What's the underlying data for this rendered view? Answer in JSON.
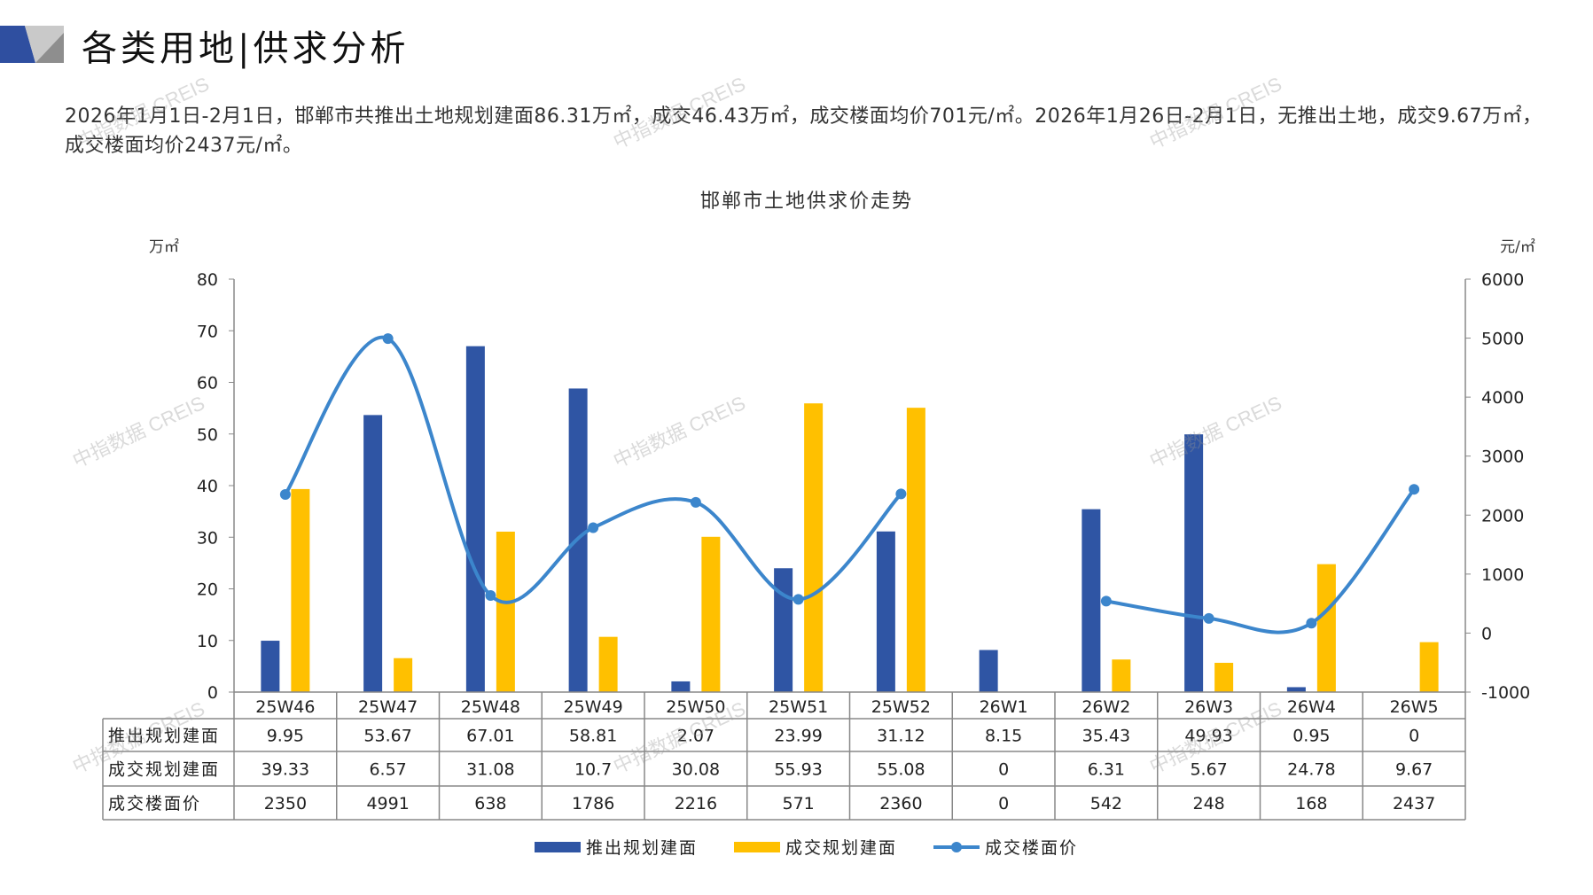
{
  "header": {
    "title": "各类用地|供求分析",
    "summary": "2026年1月1日-2月1日，邯郸市共推出土地规划建面86.31万㎡，成交46.43万㎡，成交楼面均价701元/㎡。2026年1月26日-2月1日，无推出土地，成交9.67万㎡，成交楼面均价2437元/㎡。"
  },
  "watermark": "中指数据 CREIS",
  "colors": {
    "supply": "#2F55A4",
    "deal": "#FFC000",
    "price": "#3C86CC"
  },
  "chart_data": {
    "type": "bar+line",
    "title": "邯郸市土地供求价走势",
    "ylabel_left": "万㎡",
    "ylabel_right": "元/㎡",
    "ylim_left": [
      0,
      80
    ],
    "ylim_right": [
      -1000,
      6000
    ],
    "yticks_left": [
      "80",
      "70",
      "60",
      "50",
      "40",
      "30",
      "20",
      "10",
      "0"
    ],
    "yticks_right": [
      "6000",
      "5000",
      "4000",
      "3000",
      "2000",
      "1000",
      "0",
      "-1000"
    ],
    "categories": [
      "25W46",
      "25W47",
      "25W48",
      "25W49",
      "25W50",
      "25W51",
      "25W52",
      "26W1",
      "26W2",
      "26W3",
      "26W4",
      "26W5"
    ],
    "series": [
      {
        "name": "推出规划建面",
        "type": "bar",
        "axis": "left",
        "values": [
          9.95,
          53.67,
          67.01,
          58.81,
          2.07,
          23.99,
          31.12,
          8.15,
          35.43,
          49.93,
          0.95,
          0
        ],
        "labels": [
          "9.95",
          "53.67",
          "67.01",
          "58.81",
          "2.07",
          "23.99",
          "31.12",
          "8.15",
          "35.43",
          "49.93",
          "0.95",
          "0"
        ]
      },
      {
        "name": "成交规划建面",
        "type": "bar",
        "axis": "left",
        "values": [
          39.33,
          6.57,
          31.08,
          10.7,
          30.08,
          55.93,
          55.08,
          0,
          6.31,
          5.67,
          24.78,
          9.67
        ],
        "labels": [
          "39.33",
          "6.57",
          "31.08",
          "10.7",
          "30.08",
          "55.93",
          "55.08",
          "0",
          "6.31",
          "5.67",
          "24.78",
          "9.67"
        ]
      },
      {
        "name": "成交楼面价",
        "type": "line",
        "axis": "right",
        "values": [
          2350,
          4991,
          638,
          1786,
          2216,
          571,
          2360,
          0,
          542,
          248,
          168,
          2437
        ],
        "labels": [
          "2350",
          "4991",
          "638",
          "1786",
          "2216",
          "571",
          "2360",
          "0",
          "542",
          "248",
          "168",
          "2437"
        ]
      }
    ],
    "legend_position": "bottom",
    "data_table": true
  }
}
